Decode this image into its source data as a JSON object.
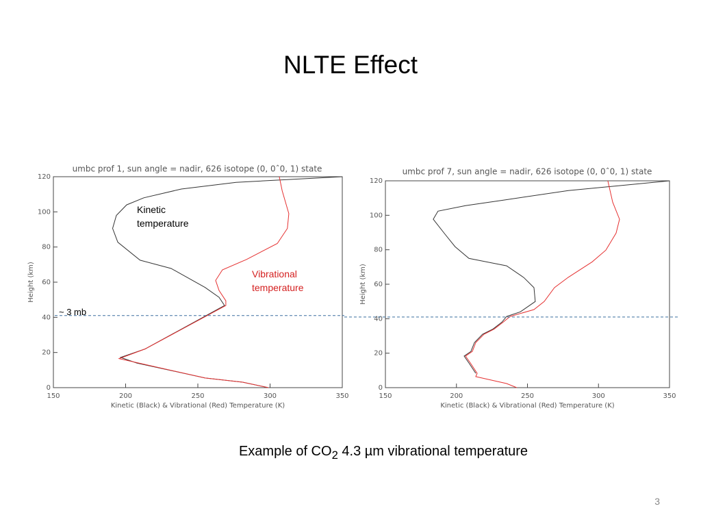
{
  "title": "NLTE Effect",
  "caption": {
    "before": "Example of CO",
    "sub": "2",
    "after": " 4.3 µm vibrational temperature"
  },
  "page_number": "3",
  "chart_data": [
    {
      "type": "line",
      "title": "umbc prof 1, sun angle = nadir, 626 isotope (0, 0ˆ0, 1) state",
      "xlabel": "Kinetic (Black) & Vibrational (Red) Temperature (K)",
      "ylabel": "Height (km)",
      "xlim": [
        150,
        350
      ],
      "xticks": [
        150,
        200,
        250,
        300,
        350
      ],
      "ylim": [
        0,
        120
      ],
      "yticks": [
        0,
        20,
        40,
        60,
        80,
        100,
        120
      ],
      "hline": 41,
      "hline_label": "~ 3 mb",
      "hline_color": "#3a6f9f",
      "annotations": [
        {
          "text": "Kinetic temperature",
          "color": "#000000"
        },
        {
          "text": "Vibrational temperature",
          "color": "#d42020"
        }
      ],
      "series": [
        {
          "color": "#333333",
          "x": [
            350,
            276.5,
            238.6,
            212.6,
            200.7,
            193.6,
            191,
            194.6,
            210,
            231.5,
            255,
            264.7,
            268.5,
            213.5,
            196.5,
            207.8,
            255,
            281,
            298.8
          ],
          "values": [
            120,
            116.8,
            113,
            108,
            104,
            98,
            90.6,
            82.7,
            72.5,
            67.8,
            57,
            51.4,
            46.7,
            22,
            17.2,
            14,
            5.5,
            3.1,
            0
          ]
        },
        {
          "color": "#e53030",
          "x": [
            306.4,
            308.4,
            313,
            312,
            305,
            283.6,
            267,
            262.3,
            264.7,
            269.4,
            269.4,
            213.5,
            195.5,
            255,
            281,
            298.8
          ],
          "values": [
            120,
            112,
            99,
            90.6,
            82,
            72.9,
            67,
            61,
            55.3,
            49.4,
            46.7,
            22,
            16.5,
            5.5,
            3.1,
            0
          ]
        }
      ]
    },
    {
      "type": "line",
      "title": "umbc prof 7, sun angle = nadir, 626 isotope (0, 0ˆ0, 1) state",
      "xlabel": "Kinetic (Black) & Vibrational (Red) Temperature (K)",
      "ylabel": "Height (km)",
      "xlim": [
        150,
        350
      ],
      "xticks": [
        150,
        200,
        250,
        300,
        350
      ],
      "ylim": [
        0,
        120
      ],
      "yticks": [
        0,
        20,
        40,
        60,
        80,
        100,
        120
      ],
      "hline": 41,
      "hline_color": "#3a6f9f",
      "series": [
        {
          "color": "#333333",
          "x": [
            350,
            278.7,
            233,
            206.4,
            187,
            183.7,
            192,
            199,
            208.8,
            235.3,
            247.4,
            254.6,
            255.5,
            245,
            235.3,
            232,
            225.7,
            218.4,
            212.7,
            210.2,
            205.4,
            208.8,
            213.6
          ],
          "values": [
            120,
            114.3,
            108.8,
            105.6,
            102.4,
            97.7,
            89,
            81.8,
            75,
            70.7,
            63.9,
            58,
            50,
            44,
            41.3,
            38,
            34,
            31,
            26.2,
            21,
            18.3,
            14.3,
            8.3
          ]
        },
        {
          "color": "#e53030",
          "x": [
            306.6,
            310,
            314.8,
            312.4,
            305.2,
            295.6,
            278.7,
            269,
            261.8,
            254.6,
            237.7,
            232.9,
            226.6,
            219.4,
            213.6,
            211.2,
            206.4,
            209.8,
            214.6,
            213.6,
            235.3,
            242.5
          ],
          "values": [
            120,
            107.6,
            97.7,
            89.7,
            79.8,
            73,
            64,
            58,
            50,
            45.3,
            41.3,
            38,
            34,
            31,
            26.2,
            21,
            18.3,
            14.3,
            8.3,
            6.4,
            2.4,
            0
          ]
        }
      ]
    }
  ]
}
